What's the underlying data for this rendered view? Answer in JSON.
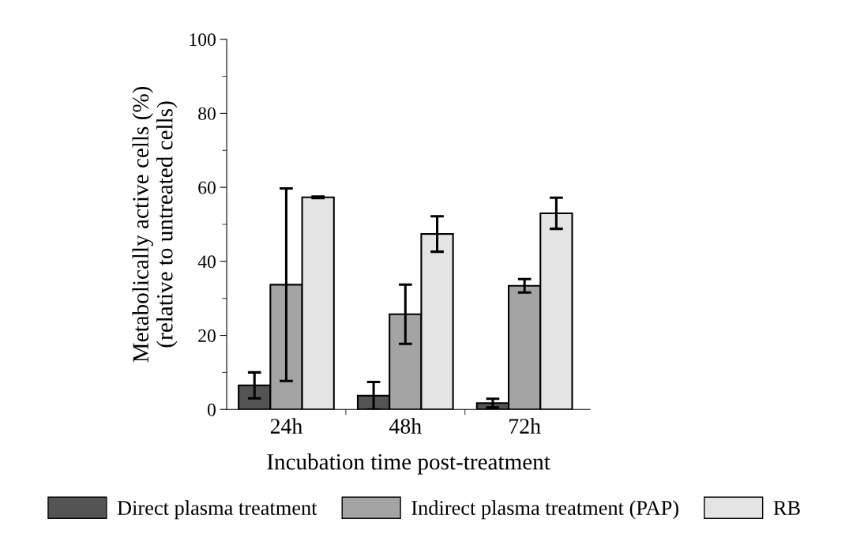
{
  "chart_data": {
    "type": "bar",
    "xlabel": "Incubation time post-treatment",
    "ylabel": "Metabolically active cells (%)\n(relative to untreated cells)",
    "categories": [
      "24h",
      "48h",
      "72h"
    ],
    "series": [
      {
        "name": "Direct plasma treatment",
        "color": "#545454",
        "values": [
          6.5,
          3.7,
          1.7
        ],
        "errors": [
          3.5,
          3.7,
          1.2
        ]
      },
      {
        "name": "Indirect plasma treatment (PAP)",
        "color": "#a4a4a4",
        "values": [
          33.7,
          25.7,
          33.4
        ],
        "errors": [
          26,
          8,
          1.8
        ]
      },
      {
        "name": "RB",
        "color": "#e4e4e4",
        "values": [
          57.3,
          47.4,
          53.0
        ],
        "errors": [
          0.2,
          4.8,
          4.2
        ]
      }
    ],
    "ylim": [
      0,
      100
    ],
    "yticks": [
      0,
      20,
      40,
      60,
      80,
      100
    ],
    "grid": false,
    "legend": "bottom"
  }
}
